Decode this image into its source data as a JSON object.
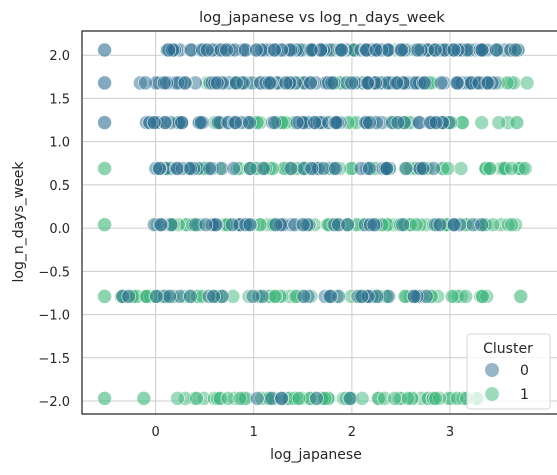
{
  "chart_data": {
    "type": "scatter",
    "title": "log_japanese vs log_n_days_week",
    "xlabel": "log_japanese",
    "ylabel": "log_n_days_week",
    "xlim": [
      -0.75,
      4.1
    ],
    "ylim": [
      -2.15,
      2.28
    ],
    "xticks": [
      0,
      1,
      2,
      3
    ],
    "xtick_labels": [
      "0",
      "1",
      "2",
      "3"
    ],
    "yticks": [
      -2.0,
      -1.5,
      -1.0,
      -0.5,
      0.0,
      0.5,
      1.0,
      1.5,
      2.0
    ],
    "ytick_labels": [
      "−2.0",
      "−1.5",
      "−1.0",
      "−0.5",
      "0.0",
      "0.5",
      "1.0",
      "1.5",
      "2.0"
    ],
    "grid": true,
    "legend": {
      "title": "Cluster",
      "placement": "lower-right"
    },
    "series": [
      {
        "name": "0",
        "color": "#2f6f91",
        "levels": [
          {
            "y": 2.06,
            "x_range": [
              0.1,
              3.7
            ],
            "count": 120
          },
          {
            "y": 1.68,
            "x_range": [
              -0.2,
              3.5
            ],
            "count": 100
          },
          {
            "y": 1.22,
            "x_range": [
              -0.1,
              3.2
            ],
            "count": 70
          },
          {
            "y": 0.69,
            "x_range": [
              0.0,
              3.2
            ],
            "count": 40
          },
          {
            "y": 0.04,
            "x_range": [
              -0.1,
              3.4
            ],
            "count": 40
          },
          {
            "y": -0.79,
            "x_range": [
              -0.4,
              2.9
            ],
            "count": 30
          },
          {
            "y": -1.97,
            "x_range": [
              1.0,
              2.6
            ],
            "count": 6
          }
        ],
        "extra_points": [
          [
            -0.52,
            2.06
          ],
          [
            -0.52,
            1.68
          ],
          [
            -0.52,
            1.22
          ]
        ]
      },
      {
        "name": "1",
        "color": "#3fb57c",
        "levels": [
          {
            "y": 2.06,
            "x_range": [
              1.0,
              3.7
            ],
            "count": 45
          },
          {
            "y": 1.68,
            "x_range": [
              0.5,
              3.8
            ],
            "count": 60
          },
          {
            "y": 1.22,
            "x_range": [
              0.2,
              3.6
            ],
            "count": 50
          },
          {
            "y": 0.69,
            "x_range": [
              0.0,
              3.8
            ],
            "count": 75
          },
          {
            "y": 0.04,
            "x_range": [
              0.0,
              3.7
            ],
            "count": 90
          },
          {
            "y": -0.79,
            "x_range": [
              -0.4,
              3.4
            ],
            "count": 80
          },
          {
            "y": -1.97,
            "x_range": [
              0.2,
              3.4
            ],
            "count": 70
          }
        ],
        "extra_points": [
          [
            -0.52,
            0.69
          ],
          [
            -0.52,
            0.04
          ],
          [
            -0.52,
            -0.79
          ],
          [
            -0.52,
            -1.97
          ],
          [
            -0.12,
            -1.97
          ],
          [
            3.72,
            -0.79
          ],
          [
            3.68,
            1.22
          ]
        ]
      }
    ]
  }
}
